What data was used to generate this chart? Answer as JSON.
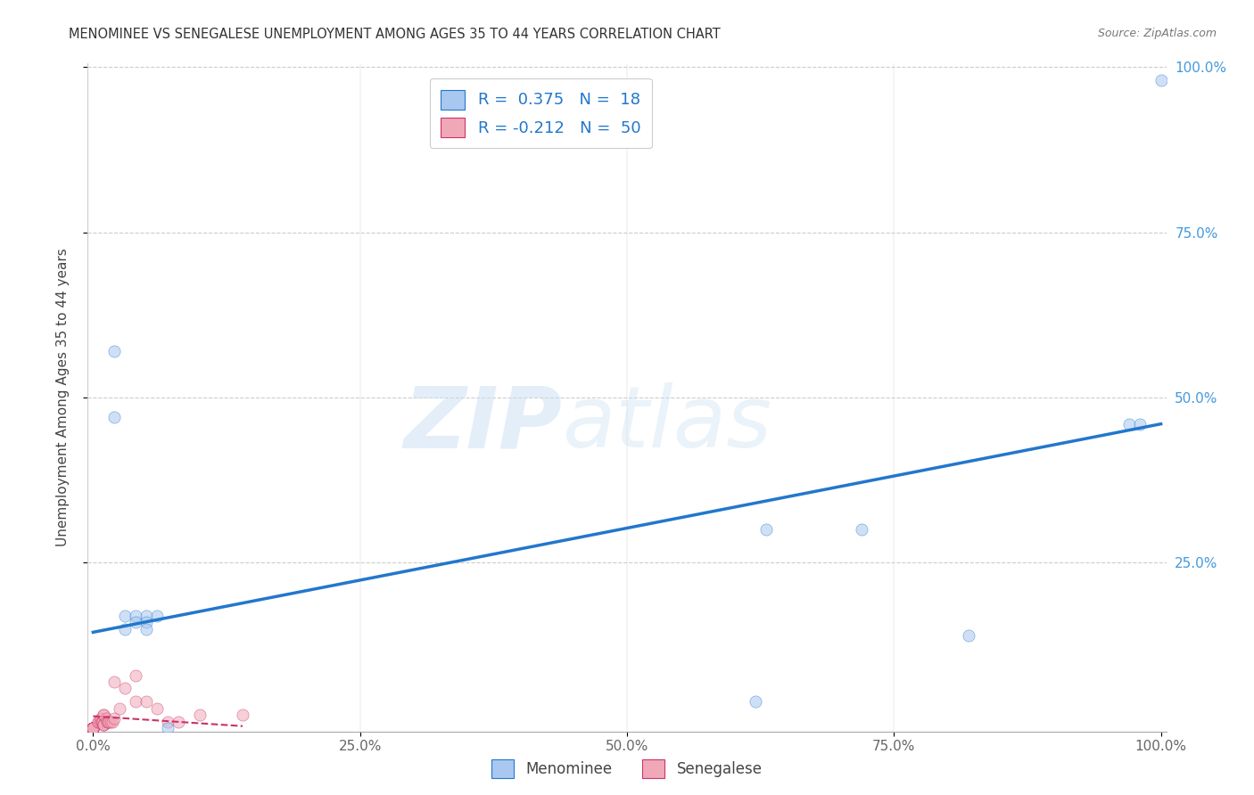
{
  "title": "MENOMINEE VS SENEGALESE UNEMPLOYMENT AMONG AGES 35 TO 44 YEARS CORRELATION CHART",
  "source": "Source: ZipAtlas.com",
  "ylabel": "Unemployment Among Ages 35 to 44 years",
  "legend_menominee_r_val": "0.375",
  "legend_menominee_n_val": "18",
  "legend_senegalese_r_val": "-0.212",
  "legend_senegalese_n_val": "50",
  "menominee_color": "#a8c8f0",
  "senegalese_color": "#f0a8b8",
  "trendline_menominee_color": "#2277cc",
  "trendline_senegalese_color": "#cc3366",
  "menominee_x": [
    0.02,
    0.02,
    0.03,
    0.03,
    0.04,
    0.04,
    0.05,
    0.05,
    0.05,
    0.06,
    0.07,
    0.62,
    0.63,
    0.72,
    0.82,
    0.97,
    0.98,
    1.0
  ],
  "menominee_y": [
    0.57,
    0.47,
    0.17,
    0.15,
    0.17,
    0.16,
    0.17,
    0.16,
    0.15,
    0.17,
    0.0,
    0.04,
    0.3,
    0.3,
    0.14,
    0.46,
    0.46,
    0.98
  ],
  "senegalese_x": [
    0.0,
    0.0,
    0.0,
    0.0,
    0.0,
    0.0,
    0.0,
    0.0,
    0.0,
    0.0,
    0.0,
    0.0,
    0.0,
    0.0,
    0.0,
    0.0,
    0.0,
    0.0,
    0.0,
    0.0,
    0.005,
    0.005,
    0.006,
    0.007,
    0.008,
    0.008,
    0.009,
    0.01,
    0.01,
    0.01,
    0.01,
    0.01,
    0.012,
    0.013,
    0.014,
    0.015,
    0.016,
    0.018,
    0.02,
    0.02,
    0.025,
    0.03,
    0.04,
    0.04,
    0.05,
    0.06,
    0.07,
    0.08,
    0.1,
    0.14
  ],
  "senegalese_y": [
    0.0,
    0.0,
    0.0,
    0.0,
    0.0,
    0.0,
    0.0,
    0.0,
    0.0,
    0.0,
    0.0,
    0.0,
    0.0,
    0.0,
    0.0,
    0.0,
    0.0,
    0.0,
    0.0,
    0.0,
    0.01,
    0.01,
    0.01,
    0.015,
    0.01,
    0.01,
    0.01,
    0.02,
    0.02,
    0.005,
    0.005,
    0.005,
    0.015,
    0.01,
    0.01,
    0.01,
    0.01,
    0.01,
    0.015,
    0.07,
    0.03,
    0.06,
    0.04,
    0.08,
    0.04,
    0.03,
    0.01,
    0.01,
    0.02,
    0.02
  ],
  "menominee_trendline_x": [
    0.0,
    1.0
  ],
  "menominee_trendline_y": [
    0.145,
    0.46
  ],
  "senegalese_trendline_x": [
    0.0,
    0.14
  ],
  "senegalese_trendline_y": [
    0.018,
    0.003
  ],
  "xlim": [
    -0.005,
    1.005
  ],
  "ylim": [
    -0.005,
    1.005
  ],
  "xticks": [
    0.0,
    0.25,
    0.5,
    0.75,
    1.0
  ],
  "xticklabels": [
    "0.0%",
    "25.0%",
    "50.0%",
    "75.0%",
    "100.0%"
  ],
  "yticks": [
    0.25,
    0.5,
    0.75,
    1.0
  ],
  "right_yticks": [
    0.25,
    0.5,
    0.75,
    1.0
  ],
  "right_yticklabels": [
    "25.0%",
    "50.0%",
    "75.0%",
    "100.0%"
  ],
  "dot_size": 90,
  "dot_alpha": 0.55,
  "background_color": "#ffffff",
  "grid_color": "#cccccc"
}
